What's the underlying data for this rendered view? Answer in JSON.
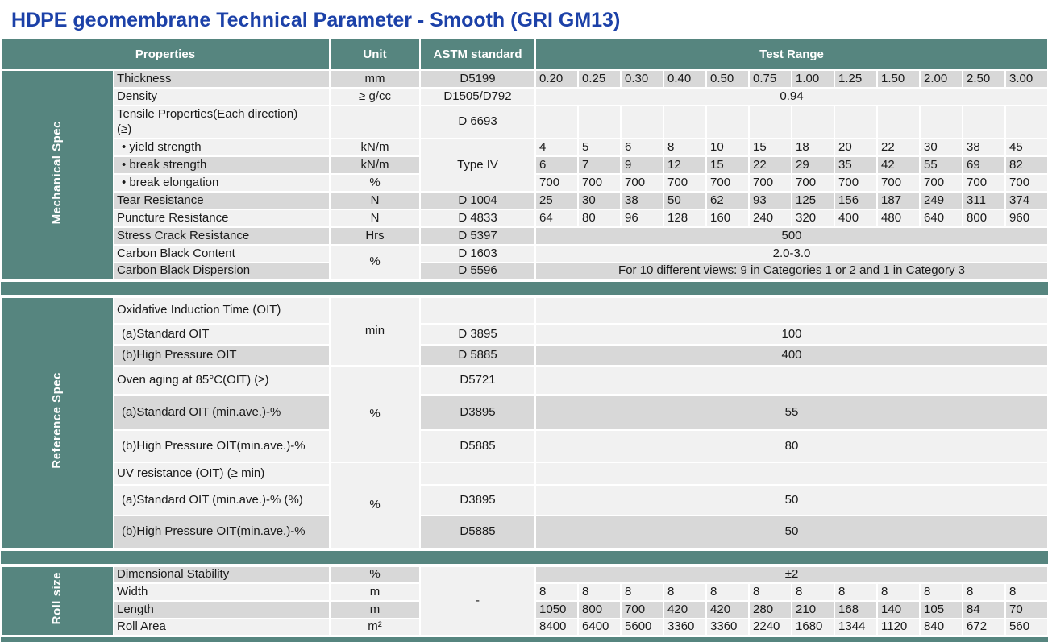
{
  "title": "HDPE geomembrane Technical Parameter - Smooth (GRI GM13)",
  "colors": {
    "teal": "#56857F",
    "title_blue": "#1C41A8",
    "row_dark": "#D8D8D8",
    "row_light": "#F1F1F1"
  },
  "header": {
    "properties": "Properties",
    "unit": "Unit",
    "astm": "ASTM standard",
    "test_range": "Test Range"
  },
  "sections": [
    {
      "label": "Mechanical Spec",
      "rows": [
        {
          "property": "Thickness",
          "unit": "mm",
          "astm": "D5199",
          "values": [
            "0.20",
            "0.25",
            "0.30",
            "0.40",
            "0.50",
            "0.75",
            "1.00",
            "1.25",
            "1.50",
            "2.00",
            "2.50",
            "3.00"
          ]
        },
        {
          "property": "Density",
          "unit": "≥  g/cc",
          "astm": "D1505/D792",
          "span": "0.94"
        },
        {
          "property": "Tensile Properties(Each direction)\n(≥)",
          "unit": "",
          "astm": "D 6693",
          "values": [
            "",
            "",
            "",
            "",
            "",
            "",
            "",
            "",
            "",
            "",
            "",
            ""
          ]
        },
        {
          "property": "• yield strength",
          "unit": "kN/m",
          "astm": "Type IV",
          "astm_rowspan": 3,
          "values": [
            "4",
            "5",
            "6",
            "8",
            "10",
            "15",
            "18",
            "20",
            "22",
            "30",
            "38",
            "45"
          ]
        },
        {
          "property": "• break strength",
          "unit": "kN/m",
          "astm_merged": true,
          "values": [
            "6",
            "7",
            "9",
            "12",
            "15",
            "22",
            "29",
            "35",
            "42",
            "55",
            "69",
            "82"
          ]
        },
        {
          "property": "• break elongation",
          "unit": "%",
          "astm_merged": true,
          "values": [
            "700",
            "700",
            "700",
            "700",
            "700",
            "700",
            "700",
            "700",
            "700",
            "700",
            "700",
            "700"
          ]
        },
        {
          "property": "Tear Resistance",
          "unit": "N",
          "astm": "D 1004",
          "values": [
            "25",
            "30",
            "38",
            "50",
            "62",
            "93",
            "125",
            "156",
            "187",
            "249",
            "311",
            "374"
          ]
        },
        {
          "property": "Puncture Resistance",
          "unit": "N",
          "astm": "D 4833",
          "values": [
            "64",
            "80",
            "96",
            "128",
            "160",
            "240",
            "320",
            "400",
            "480",
            "640",
            "800",
            "960"
          ]
        },
        {
          "property": "Stress Crack Resistance",
          "unit": "Hrs",
          "astm": "D 5397",
          "span": "500"
        },
        {
          "property": "Carbon Black Content",
          "unit": "%",
          "unit_rowspan": 2,
          "astm": "D 1603",
          "span": "2.0-3.0"
        },
        {
          "property": "Carbon Black Dispersion",
          "unit_merged": true,
          "astm": "D 5596",
          "span": "For  10 different views: 9 in Categories 1 or 2 and 1 in Category 3"
        }
      ]
    },
    {
      "label": "Reference Spec",
      "rows": [
        {
          "property": "Oxidative Induction Time (OIT)",
          "unit": "min",
          "unit_rowspan": 3,
          "astm": "",
          "span": ""
        },
        {
          "property": "(a)Standard OIT",
          "unit_merged": true,
          "astm": "D 3895",
          "span": "100"
        },
        {
          "property": "(b)High Pressure OIT",
          "unit_merged": true,
          "astm": "D 5885",
          "span": "400"
        },
        {
          "property": "Oven aging at 85°C(OIT) (≥)",
          "unit": "%",
          "unit_rowspan": 3,
          "astm": "D5721",
          "span": ""
        },
        {
          "property": "(a)Standard OIT (min.ave.)-%",
          "unit_merged": true,
          "astm": "D3895",
          "span": "55"
        },
        {
          "property": "(b)High Pressure OIT(min.ave.)-%",
          "unit_merged": true,
          "astm": "D5885",
          "span": "80"
        },
        {
          "property": "UV resistance (OIT) (≥ min)",
          "unit": "%",
          "unit_rowspan": 3,
          "astm": "",
          "span": ""
        },
        {
          "property": "(a)Standard OIT (min.ave.)-% (%)",
          "unit_merged": true,
          "astm": "D3895",
          "span": "50"
        },
        {
          "property": "(b)High Pressure OIT(min.ave.)-%",
          "unit_merged": true,
          "astm": "D5885",
          "span": "50"
        }
      ]
    },
    {
      "label": "Roll size",
      "rows": [
        {
          "property": "Dimensional Stability",
          "unit": "%",
          "astm": "-",
          "astm_rowspan": 4,
          "span": "±2"
        },
        {
          "property": "Width",
          "unit": "m",
          "astm_merged": true,
          "values": [
            "8",
            "8",
            "8",
            "8",
            "8",
            "8",
            "8",
            "8",
            "8",
            "8",
            "8",
            "8"
          ]
        },
        {
          "property": "Length",
          "unit": "m",
          "astm_merged": true,
          "values": [
            "1050",
            "800",
            "700",
            "420",
            "420",
            "280",
            "210",
            "168",
            "140",
            "105",
            "84",
            "70"
          ]
        },
        {
          "property": "Roll Area",
          "unit": "m²",
          "astm_merged": true,
          "values": [
            "8400",
            "6400",
            "5600",
            "3360",
            "3360",
            "2240",
            "1680",
            "1344",
            "1120",
            "840",
            "672",
            "560"
          ]
        }
      ]
    }
  ]
}
